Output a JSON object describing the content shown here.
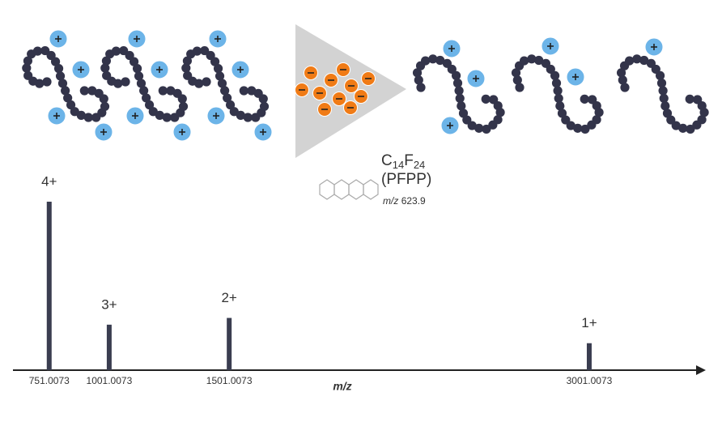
{
  "chart_data": {
    "type": "bar",
    "x": [
      751.0073,
      1001.0073,
      1501.0073,
      3001.0073
    ],
    "values": [
      100,
      27,
      31,
      16
    ],
    "labels": [
      "4+",
      "3+",
      "2+",
      "1+"
    ],
    "xlabel": "m/z",
    "xlim": [
      600,
      3480
    ],
    "xticks": [
      751.0073,
      1001.0073,
      1501.0073,
      3001.0073
    ],
    "ylim": [
      0,
      100
    ],
    "color": "#3a3d50"
  },
  "reagent": {
    "formula": [
      "C",
      "14",
      "F",
      "24"
    ],
    "name": "(PFPP)",
    "mz_label": "m/z",
    "mz": "623.9"
  }
}
